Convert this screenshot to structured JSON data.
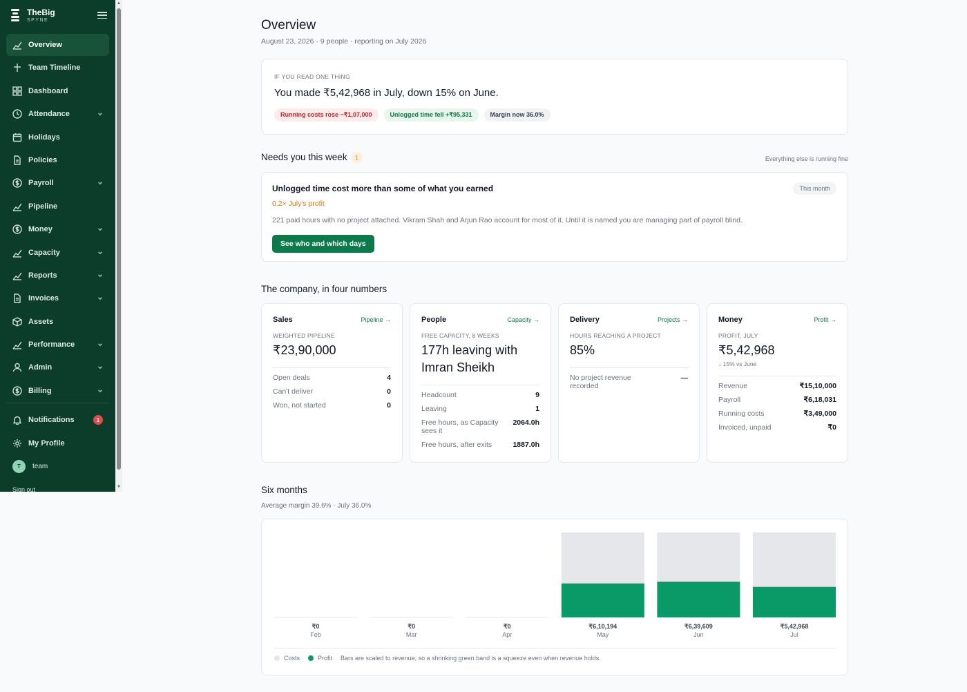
{
  "brand": {
    "name": "TheBig",
    "sub": "SPYNE"
  },
  "nav": [
    {
      "label": "Overview",
      "icon": "chart-line-icon",
      "active": true,
      "chevron": false
    },
    {
      "label": "Team Timeline",
      "icon": "timeline-icon",
      "chevron": false
    },
    {
      "label": "Dashboard",
      "icon": "grid-icon",
      "chevron": false
    },
    {
      "label": "Attendance",
      "icon": "clock-icon",
      "chevron": true
    },
    {
      "label": "Holidays",
      "icon": "calendar-icon",
      "chevron": false
    },
    {
      "label": "Policies",
      "icon": "document-icon",
      "chevron": false
    },
    {
      "label": "Payroll",
      "icon": "coin-icon",
      "chevron": true
    },
    {
      "label": "Pipeline",
      "icon": "chart-line-icon",
      "chevron": false
    },
    {
      "label": "Money",
      "icon": "coin-icon",
      "chevron": true
    },
    {
      "label": "Capacity",
      "icon": "chart-line-icon",
      "chevron": true
    },
    {
      "label": "Reports",
      "icon": "chart-line-icon",
      "chevron": true
    },
    {
      "label": "Invoices",
      "icon": "document-icon",
      "chevron": true
    },
    {
      "label": "Assets",
      "icon": "box-icon",
      "chevron": false
    },
    {
      "label": "Performance",
      "icon": "chart-line-icon",
      "chevron": true
    },
    {
      "label": "Admin",
      "icon": "user-icon",
      "chevron": true
    },
    {
      "label": "Billing",
      "icon": "coin-icon",
      "chevron": true
    }
  ],
  "nav_bottom": {
    "notifications": {
      "label": "Notifications",
      "count": "1"
    },
    "profile": {
      "label": "My Profile"
    },
    "team": {
      "initial": "T",
      "label": "team"
    },
    "signout": "Sign out"
  },
  "page": {
    "title": "Overview",
    "subtitle": "August 23, 2026 · 9 people · reporting on July 2026"
  },
  "hero": {
    "eyebrow": "If you read one thing",
    "headline": "You made ₹5,42,968 in July, down 15% on June.",
    "pills": [
      {
        "text": "Running costs rose −₹1,07,000",
        "tone": "red"
      },
      {
        "text": "Unlogged time fell +₹95,331",
        "tone": "green"
      },
      {
        "text": "Margin now 36.0%",
        "tone": "gray"
      }
    ]
  },
  "needs": {
    "title": "Needs you this week",
    "count": "1",
    "right": "Everything else is running fine",
    "alert": {
      "title": "Unlogged time cost more than some of what you earned",
      "tag": "This month",
      "sub": "0.2× July's profit",
      "body": "221 paid hours with no project attached. Vikram Shah and Arjun Rao account for most of it. Until it is named you are managing part of payroll blind.",
      "button": "See who and which days"
    }
  },
  "four": {
    "title": "The company, in four numbers",
    "cards": [
      {
        "name": "Sales",
        "link": "Pipeline →",
        "eyebrow": "Weighted pipeline",
        "value": "₹23,90,000",
        "note": "",
        "rows": [
          {
            "k": "Open deals",
            "v": "4"
          },
          {
            "k": "Can't deliver",
            "v": "0"
          },
          {
            "k": "Won, not started",
            "v": "0"
          }
        ]
      },
      {
        "name": "People",
        "link": "Capacity →",
        "eyebrow": "Free capacity, 8 weeks",
        "value": "177h leaving with Imran Sheikh",
        "note": "",
        "rows": [
          {
            "k": "Headcount",
            "v": "9"
          },
          {
            "k": "Leaving",
            "v": "1"
          },
          {
            "k": "Free hours, as Capacity sees it",
            "v": "2064.0h"
          },
          {
            "k": "Free hours, after exits",
            "v": "1887.0h"
          }
        ]
      },
      {
        "name": "Delivery",
        "link": "Projects →",
        "eyebrow": "Hours reaching a project",
        "value": "85%",
        "note": "",
        "rows": [
          {
            "k": "No project revenue recorded",
            "v": "—"
          }
        ]
      },
      {
        "name": "Money",
        "link": "Profit →",
        "eyebrow": "Profit, July",
        "value": "₹5,42,968",
        "note": "↓ 15% vs June",
        "rows": [
          {
            "k": "Revenue",
            "v": "₹15,10,000"
          },
          {
            "k": "Payroll",
            "v": "₹6,18,031"
          },
          {
            "k": "Running costs",
            "v": "₹3,49,000"
          },
          {
            "k": "Invoiced, unpaid",
            "v": "₹0"
          }
        ]
      }
    ]
  },
  "six": {
    "title": "Six months",
    "subtitle": "Average margin 39.6% · July 36.0%",
    "legend": {
      "costs": "Costs",
      "profit": "Profit",
      "note": "Bars are scaled to revenue, so a shrinking green band is a squeeze even when revenue holds."
    }
  },
  "chart_data": {
    "type": "bar",
    "categories": [
      "Feb",
      "Mar",
      "Apr",
      "May",
      "Jun",
      "Jul"
    ],
    "value_labels": [
      "₹0",
      "₹0",
      "₹0",
      "₹6,10,194",
      "₹6,39,609",
      "₹5,42,968"
    ],
    "series": [
      {
        "name": "Costs",
        "color": "#e5e7eb",
        "share": [
          0,
          0,
          0,
          0.6,
          0.58,
          0.64
        ]
      },
      {
        "name": "Profit",
        "color": "#0a9a68",
        "share": [
          0,
          0,
          0,
          0.4,
          0.42,
          0.36
        ]
      }
    ],
    "stacked": true,
    "grid": false,
    "legend": "bottom-left"
  },
  "colors": {
    "sidebar": "#0b3d2a",
    "accent": "#0d7a4b",
    "warning": "#d97706",
    "danger": "#c0262d"
  }
}
